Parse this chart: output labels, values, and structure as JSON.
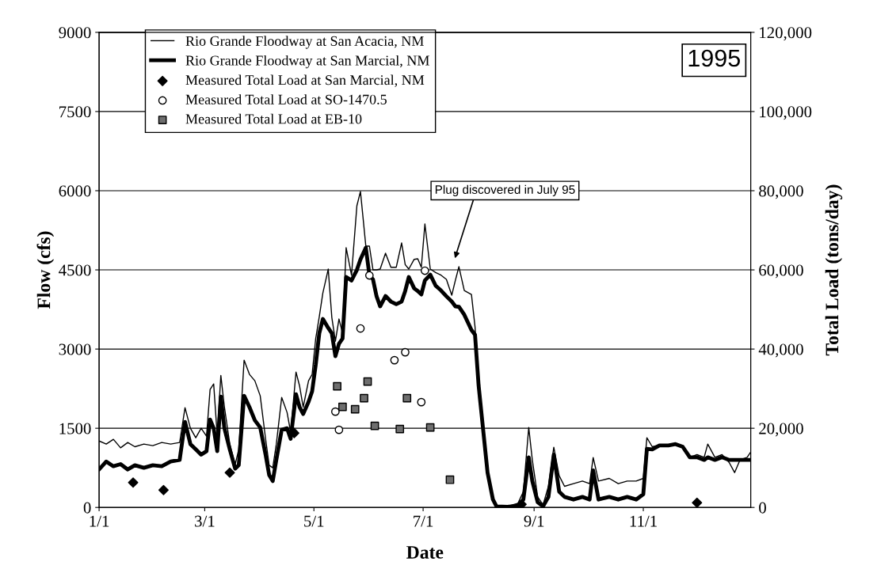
{
  "chart_data": {
    "type": "line",
    "xlabel": "Date",
    "ylabel": "Flow (cfs)",
    "y2label": "Total Load (tons/day)",
    "x": [
      "1995-01-01",
      "1995-01-05",
      "1995-01-09",
      "1995-01-13",
      "1995-01-17",
      "1995-01-21",
      "1995-01-26",
      "1995-01-31",
      "1995-02-05",
      "1995-02-10",
      "1995-02-15",
      "1995-02-18",
      "1995-02-21",
      "1995-02-24",
      "1995-02-27",
      "1995-03-02",
      "1995-03-04",
      "1995-03-06",
      "1995-03-08",
      "1995-03-10",
      "1995-03-12",
      "1995-03-15",
      "1995-03-18",
      "1995-03-20",
      "1995-03-23",
      "1995-03-26",
      "1995-03-29",
      "1995-04-01",
      "1995-04-04",
      "1995-04-06",
      "1995-04-08",
      "1995-04-10",
      "1995-04-13",
      "1995-04-16",
      "1995-04-18",
      "1995-04-21",
      "1995-04-23",
      "1995-04-25",
      "1995-04-28",
      "1995-04-30",
      "1995-05-02",
      "1995-05-04",
      "1995-05-06",
      "1995-05-09",
      "1995-05-11",
      "1995-05-13",
      "1995-05-15",
      "1995-05-17",
      "1995-05-19",
      "1995-05-22",
      "1995-05-25",
      "1995-05-27",
      "1995-05-30",
      "1995-06-01",
      "1995-06-03",
      "1995-06-05",
      "1995-06-07",
      "1995-06-10",
      "1995-06-13",
      "1995-06-16",
      "1995-06-19",
      "1995-06-21",
      "1995-06-23",
      "1995-06-26",
      "1995-06-28",
      "1995-06-30",
      "1995-07-02",
      "1995-07-05",
      "1995-07-08",
      "1995-07-11",
      "1995-07-14",
      "1995-07-17",
      "1995-07-19",
      "1995-07-21",
      "1995-07-24",
      "1995-07-28",
      "1995-07-30",
      "1995-08-01",
      "1995-08-04",
      "1995-08-06",
      "1995-08-09",
      "1995-08-11",
      "1995-08-17",
      "1995-08-23",
      "1995-08-26",
      "1995-08-29",
      "1995-08-31",
      "1995-09-03",
      "1995-09-06",
      "1995-09-09",
      "1995-09-12",
      "1995-09-15",
      "1995-09-18",
      "1995-09-23",
      "1995-09-28",
      "1995-10-02",
      "1995-10-04",
      "1995-10-07",
      "1995-10-13",
      "1995-10-18",
      "1995-10-23",
      "1995-10-28",
      "1995-11-01",
      "1995-11-03",
      "1995-11-06",
      "1995-11-10",
      "1995-11-15",
      "1995-11-19",
      "1995-11-23",
      "1995-11-27",
      "1995-12-01",
      "1995-12-05",
      "1995-12-07",
      "1995-12-11",
      "1995-12-15",
      "1995-12-19",
      "1995-12-22",
      "1995-12-25",
      "1995-12-29",
      "1995-12-31"
    ],
    "series": [
      {
        "name": "Rio Grande Floodway at San Acacia, NM",
        "color": "#000000",
        "values": [
          1260,
          1200,
          1290,
          1130,
          1230,
          1150,
          1200,
          1170,
          1230,
          1200,
          1230,
          1890,
          1500,
          1320,
          1500,
          1350,
          2235,
          2340,
          1350,
          2500,
          1900,
          1200,
          810,
          1100,
          2790,
          2520,
          2400,
          2115,
          1300,
          800,
          750,
          1200,
          2085,
          1800,
          1425,
          2565,
          2300,
          1900,
          2400,
          2520,
          3200,
          3615,
          4065,
          4515,
          3600,
          3150,
          3570,
          3300,
          4920,
          4400,
          5715,
          5985,
          4950,
          4950,
          4500,
          4500,
          4515,
          4815,
          4550,
          4550,
          5010,
          4600,
          4515,
          4700,
          4710,
          4550,
          5370,
          4515,
          4450,
          4400,
          4320,
          4020,
          4300,
          4560,
          4110,
          4035,
          3420,
          2310,
          1320,
          660,
          150,
          30,
          20,
          80,
          300,
          1515,
          900,
          200,
          50,
          400,
          1140,
          600,
          400,
          450,
          500,
          450,
          945,
          500,
          550,
          450,
          500,
          500,
          550,
          1320,
          1150,
          1180,
          1170,
          1200,
          1170,
          950,
          1000,
          950,
          1200,
          950,
          1000,
          850,
          660,
          900,
          950,
          1050
        ]
      },
      {
        "name": "Rio Grande Floodway at San Marcial, NM",
        "color": "#000000",
        "values": [
          720,
          870,
          780,
          820,
          720,
          800,
          750,
          800,
          780,
          870,
          900,
          1620,
          1200,
          1100,
          1000,
          1065,
          1665,
          1500,
          1065,
          2100,
          1500,
          1100,
          735,
          800,
          2115,
          1900,
          1650,
          1515,
          1000,
          615,
          500,
          900,
          1470,
          1500,
          1300,
          2145,
          1900,
          1770,
          2000,
          2200,
          2700,
          3300,
          3570,
          3400,
          3300,
          2865,
          3100,
          3200,
          4365,
          4300,
          4500,
          4700,
          4920,
          4400,
          4320,
          4000,
          3810,
          4005,
          3900,
          3850,
          3900,
          4100,
          4365,
          4150,
          4100,
          4035,
          4300,
          4410,
          4200,
          4110,
          4000,
          3900,
          3810,
          3800,
          3650,
          3360,
          3270,
          2310,
          1320,
          660,
          150,
          20,
          10,
          30,
          150,
          950,
          500,
          100,
          20,
          200,
          1000,
          300,
          200,
          150,
          200,
          150,
          700,
          150,
          200,
          150,
          200,
          150,
          250,
          1110,
          1100,
          1175,
          1175,
          1200,
          1150,
          950,
          950,
          900,
          950,
          900,
          950,
          900,
          900,
          900,
          900,
          900
        ]
      },
      {
        "name": "Measured Total Load at San Marcial, NM",
        "type": "scatter",
        "axis": "y2",
        "marker": "diamond",
        "color": "#000000",
        "x": [
          "1995-01-20",
          "1995-02-06",
          "1995-03-15",
          "1995-04-20",
          "1995-08-25",
          "1995-12-01"
        ],
        "values": [
          6300,
          4400,
          8800,
          18800,
          800,
          1200
        ]
      },
      {
        "name": "Measured Total Load at SO-1470.5",
        "type": "scatter",
        "axis": "y2",
        "marker": "circle",
        "color": "#ffffff",
        "x": [
          "1995-05-13",
          "1995-05-15",
          "1995-05-27",
          "1995-06-01",
          "1995-06-15",
          "1995-06-21",
          "1995-06-30",
          "1995-07-02"
        ],
        "values": [
          24200,
          19600,
          45200,
          58600,
          37200,
          39200,
          26600,
          59800
        ]
      },
      {
        "name": "Measured Total Load at EB-10",
        "type": "scatter",
        "axis": "y2",
        "marker": "square",
        "color": "#6e6e6e",
        "x": [
          "1995-05-14",
          "1995-05-17",
          "1995-05-24",
          "1995-05-29",
          "1995-05-31",
          "1995-06-04",
          "1995-06-18",
          "1995-06-22",
          "1995-07-05",
          "1995-07-16"
        ],
        "values": [
          30600,
          25400,
          24800,
          27600,
          31800,
          20600,
          19800,
          27600,
          20200,
          7000
        ]
      }
    ],
    "xlim": [
      "1995-01-01",
      "1995-12-31"
    ],
    "xticks": [
      {
        "value": "1995-01-01",
        "label": "1/1"
      },
      {
        "value": "1995-03-01",
        "label": "3/1"
      },
      {
        "value": "1995-05-01",
        "label": "5/1"
      },
      {
        "value": "1995-07-01",
        "label": "7/1"
      },
      {
        "value": "1995-09-01",
        "label": "9/1"
      },
      {
        "value": "1995-11-01",
        "label": "11/1"
      }
    ],
    "ylim": [
      0,
      9000
    ],
    "yticks": [
      0,
      1500,
      3000,
      4500,
      6000,
      7500,
      9000
    ],
    "y2lim": [
      0,
      120000
    ],
    "y2ticks": [
      0,
      {
        "value": 20000,
        "label": "20,000"
      },
      {
        "value": 40000,
        "label": "40,000"
      },
      {
        "value": 60000,
        "label": "60,000"
      },
      {
        "value": 80000,
        "label": "80,000"
      },
      {
        "value": 100000,
        "label": "100,000"
      },
      {
        "value": 120000,
        "label": "120,000"
      }
    ],
    "grid": "y",
    "legend": "top left",
    "line_style": "solid",
    "annotations": [
      "1995",
      "Plug discovered in July 95"
    ]
  }
}
